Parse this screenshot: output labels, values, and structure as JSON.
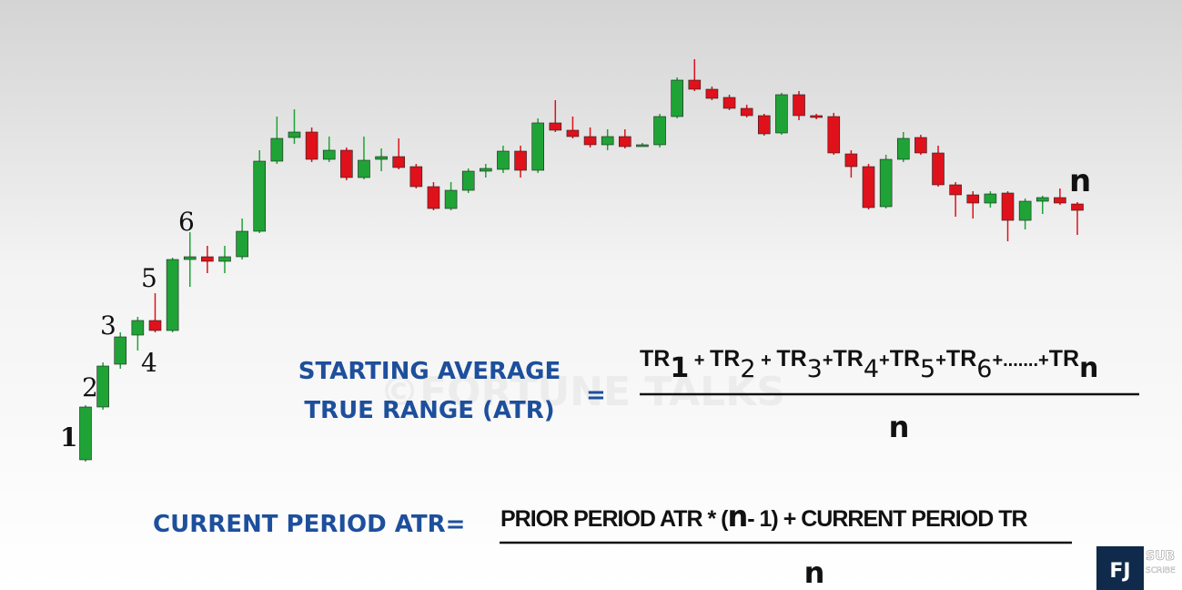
{
  "chart_data": {
    "type": "candlestick",
    "ylim": [
      0,
      600
    ],
    "up_color": "#1fa336",
    "down_color": "#df111b",
    "open": [
      95,
      153,
      200,
      232,
      248,
      237,
      315,
      318,
      313,
      318,
      346,
      423,
      449,
      455,
      425,
      435,
      405,
      425,
      428,
      417,
      395,
      371,
      391,
      412,
      414,
      434,
      413,
      465,
      457,
      450,
      441,
      450,
      440,
      441,
      472,
      512,
      502,
      493,
      481,
      473,
      454,
      496,
      473,
      472,
      431,
      417,
      373,
      425,
      449,
      432,
      397,
      386,
      377,
      388,
      358,
      379,
      383,
      376
    ],
    "close": [
      153,
      198,
      230,
      248,
      237,
      315,
      318,
      313,
      318,
      346,
      423,
      448,
      455,
      425,
      435,
      405,
      424,
      428,
      416,
      395,
      371,
      391,
      412,
      415,
      434,
      413,
      465,
      457,
      450,
      441,
      450,
      439,
      441,
      472,
      512,
      502,
      492,
      481,
      473,
      453,
      496,
      473,
      471,
      432,
      417,
      372,
      425,
      448,
      432,
      397,
      386,
      377,
      387,
      358,
      379,
      383,
      377,
      369
    ],
    "high": [
      155,
      202,
      235,
      252,
      278,
      317,
      345,
      330,
      330,
      360,
      435,
      472,
      480,
      460,
      450,
      438,
      450,
      437,
      448,
      420,
      400,
      400,
      415,
      420,
      440,
      440,
      470,
      490,
      472,
      460,
      458,
      458,
      443,
      475,
      515,
      535,
      505,
      496,
      485,
      475,
      498,
      500,
      475,
      476,
      435,
      420,
      430,
      455,
      452,
      440,
      400,
      390,
      390,
      390,
      382,
      385,
      393,
      378
    ],
    "low": [
      93,
      150,
      195,
      215,
      235,
      235,
      285,
      300,
      300,
      315,
      344,
      420,
      442,
      422,
      422,
      402,
      403,
      412,
      414,
      393,
      369,
      369,
      388,
      405,
      410,
      405,
      410,
      455,
      448,
      438,
      435,
      437,
      439,
      438,
      470,
      500,
      490,
      479,
      471,
      451,
      452,
      468,
      469,
      430,
      405,
      370,
      371,
      422,
      430,
      395,
      362,
      360,
      372,
      335,
      348,
      365,
      375,
      342
    ],
    "annotations": [
      "1",
      "2",
      "3",
      "4",
      "5",
      "6",
      "n"
    ],
    "watermark": "©FORTUNE TALKS"
  },
  "formula_1": {
    "label": [
      "STARTING AVERAGE",
      "TRUE RANGE (ATR)"
    ],
    "equals": "=",
    "terms": [
      {
        "base": "TR",
        "sub": "1"
      },
      {
        "base": "TR",
        "sub": "2"
      },
      {
        "base": "TR",
        "sub": "3"
      },
      {
        "base": "TR",
        "sub": "4"
      },
      {
        "base": "TR",
        "sub": "5"
      },
      {
        "base": "TR",
        "sub": "6"
      },
      {
        "base": "TR",
        "sub": "n"
      }
    ],
    "joiners": [
      " + ",
      " + ",
      "+",
      "+",
      "+",
      "+.......+"
    ],
    "denominator": "n"
  },
  "formula_2": {
    "label": "CURRENT PERIOD ATR=",
    "numerator": [
      "PRIOR PERIOD ATR * (",
      "n",
      "- 1) + CURRENT PERIOD TR"
    ],
    "denominator": "n"
  },
  "badge": {
    "logo": "FJ",
    "text": [
      "SUB",
      "SCRIBE"
    ]
  }
}
